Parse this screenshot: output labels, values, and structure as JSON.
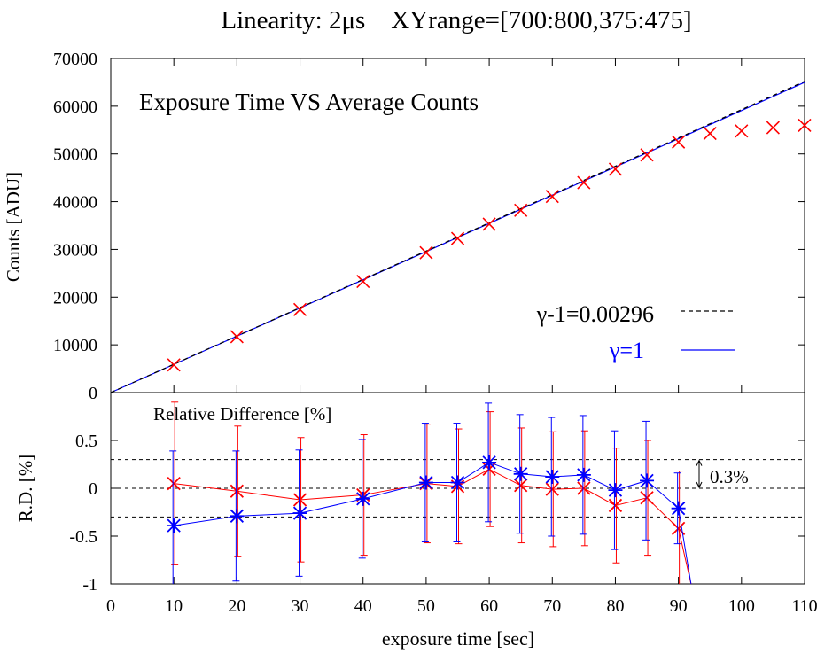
{
  "chart_data": [
    {
      "type": "scatter",
      "title": "Linearity: 2μs    XYrange=[700:800,375:475]",
      "inner_title": "Exposure Time VS Average Counts",
      "xlabel": "",
      "ylabel": "Counts [ADU]",
      "xlim": [
        0,
        110
      ],
      "ylim": [
        0,
        70000
      ],
      "x_ticks": [
        "0",
        "10",
        "20",
        "30",
        "40",
        "50",
        "60",
        "70",
        "80",
        "90",
        "100",
        "110"
      ],
      "y_ticks": [
        "0",
        "10000",
        "20000",
        "30000",
        "40000",
        "50000",
        "60000",
        "70000"
      ],
      "grid": false,
      "legend_position": "lower-right",
      "series": [
        {
          "marker": "x",
          "color": "#ff0000",
          "x": [
            10,
            20,
            30,
            40,
            50,
            55,
            60,
            65,
            70,
            75,
            80,
            85,
            90,
            95,
            100,
            105,
            110
          ],
          "y": [
            5800,
            11700,
            17400,
            23300,
            29300,
            32300,
            35300,
            38200,
            41100,
            44000,
            46800,
            49800,
            52500,
            54300,
            54800,
            55500,
            56000
          ]
        },
        {
          "name": "γ-1=0.00296",
          "style": "dashed",
          "color": "#000000",
          "x": [
            0,
            110
          ],
          "y": [
            0,
            65200
          ]
        },
        {
          "name": "γ=1",
          "style": "solid",
          "color": "#0000ff",
          "x": [
            0,
            110
          ],
          "y": [
            0,
            65000
          ]
        }
      ]
    },
    {
      "type": "line",
      "title": "Relative Difference [%]",
      "xlabel": "exposure time [sec]",
      "ylabel": "R.D. [%]",
      "xlim": [
        0,
        110
      ],
      "ylim": [
        -1,
        1
      ],
      "x_ticks": [
        "0",
        "10",
        "20",
        "30",
        "40",
        "50",
        "60",
        "70",
        "80",
        "90",
        "100",
        "110"
      ],
      "y_ticks": [
        "-1",
        "-0.5",
        "0",
        "0.5",
        ""
      ],
      "reference_lines": [
        0.3,
        0,
        -0.3
      ],
      "annotation": "0.3%",
      "series": [
        {
          "marker": "x",
          "color": "#ff0000",
          "x": [
            10,
            20,
            30,
            40,
            50,
            55,
            60,
            65,
            70,
            75,
            80,
            85,
            90,
            92
          ],
          "y": [
            0.05,
            -0.03,
            -0.12,
            -0.07,
            0.05,
            0.02,
            0.2,
            0.03,
            -0.01,
            0.0,
            -0.18,
            -0.1,
            -0.42,
            -1.0
          ],
          "err": [
            0.85,
            0.68,
            0.65,
            0.63,
            0.62,
            0.6,
            0.6,
            0.6,
            0.6,
            0.6,
            0.6,
            0.6,
            0.6,
            null
          ]
        },
        {
          "marker": "asterisk",
          "color": "#0000ff",
          "x": [
            10,
            20,
            30,
            40,
            50,
            55,
            60,
            65,
            70,
            75,
            80,
            85,
            90,
            92
          ],
          "y": [
            -0.39,
            -0.29,
            -0.26,
            -0.11,
            0.06,
            0.06,
            0.27,
            0.15,
            0.12,
            0.14,
            -0.02,
            0.08,
            -0.21,
            -1.0
          ],
          "err": [
            0.78,
            0.68,
            0.66,
            0.62,
            0.62,
            0.62,
            0.62,
            0.62,
            0.62,
            0.62,
            0.62,
            0.62,
            0.37,
            null
          ]
        }
      ]
    }
  ]
}
